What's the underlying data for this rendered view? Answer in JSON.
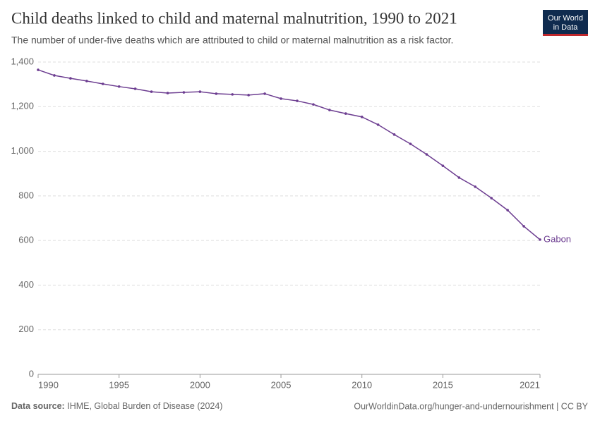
{
  "logo": {
    "line1": "Our World",
    "line2": "in Data"
  },
  "chart_data": {
    "type": "line",
    "title": "Child deaths linked to child and maternal malnutrition, 1990 to 2021",
    "subtitle": "The number of under-five deaths which are attributed to child or maternal malnutrition as a risk factor.",
    "x": [
      1990,
      1991,
      1992,
      1993,
      1994,
      1995,
      1996,
      1997,
      1998,
      1999,
      2000,
      2001,
      2002,
      2003,
      2004,
      2005,
      2006,
      2007,
      2008,
      2009,
      2010,
      2011,
      2012,
      2013,
      2014,
      2015,
      2016,
      2017,
      2018,
      2019,
      2020,
      2021
    ],
    "series": [
      {
        "name": "Gabon",
        "color": "#6d3e91",
        "values": [
          1365,
          1340,
          1327,
          1315,
          1302,
          1290,
          1280,
          1267,
          1261,
          1264,
          1267,
          1258,
          1255,
          1252,
          1258,
          1236,
          1226,
          1210,
          1185,
          1169,
          1154,
          1119,
          1075,
          1033,
          986,
          935,
          882,
          841,
          790,
          736,
          664,
          604
        ]
      }
    ],
    "xlim": [
      1990,
      2021
    ],
    "xticks": [
      1990,
      1995,
      2000,
      2005,
      2010,
      2015,
      2021
    ],
    "ylim": [
      0,
      1400
    ],
    "yticks": [
      0,
      200,
      400,
      600,
      800,
      {
        "value": 1000,
        "label": "1,000"
      },
      {
        "value": 1200,
        "label": "1,200"
      },
      {
        "value": 1400,
        "label": "1,400"
      }
    ],
    "grid": true,
    "source_label": "Data source:",
    "source": "IHME, Global Burden of Disease (2024)",
    "credit": "OurWorldinData.org/hunger-and-undernourishment | CC BY"
  }
}
